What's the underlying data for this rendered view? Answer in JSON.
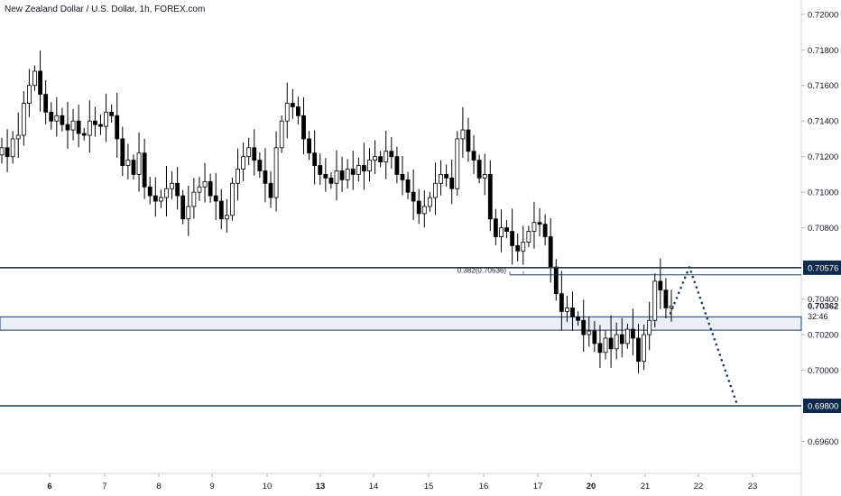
{
  "title": "New Zealand Dollar / U.S. Dollar, 1h, FOREX.com",
  "chart_data": {
    "type": "candlestick",
    "symbol": "NZDUSD",
    "timeframe": "1h",
    "source": "FOREX.com",
    "ylim": [
      0.6942,
      0.7208
    ],
    "y_ticks": [
      "0.72000",
      "0.71800",
      "0.71600",
      "0.71400",
      "0.71200",
      "0.71000",
      "0.70800",
      "0.70400",
      "0.70200",
      "0.70000",
      "0.69600"
    ],
    "y_tick_values": [
      0.72,
      0.718,
      0.716,
      0.714,
      0.712,
      0.71,
      0.708,
      0.704,
      0.702,
      0.7,
      0.696
    ],
    "x_ticks": [
      "6",
      "7",
      "8",
      "9",
      "10",
      "13",
      "14",
      "15",
      "16",
      "17",
      "20",
      "21",
      "22",
      "23"
    ],
    "x_tick_bold": [
      "6",
      "13",
      "20"
    ],
    "price_series": [
      0.7125,
      0.712,
      0.713,
      0.7132,
      0.715,
      0.716,
      0.7168,
      0.7155,
      0.7145,
      0.714,
      0.7143,
      0.7138,
      0.7135,
      0.714,
      0.7133,
      0.7132,
      0.714,
      0.7138,
      0.7137,
      0.7145,
      0.7143,
      0.713,
      0.7115,
      0.7118,
      0.711,
      0.7122,
      0.7103,
      0.7098,
      0.7095,
      0.7097,
      0.7102,
      0.7105,
      0.7098,
      0.7085,
      0.7092,
      0.71,
      0.7103,
      0.7106,
      0.7098,
      0.7095,
      0.7085,
      0.7087,
      0.7105,
      0.7113,
      0.712,
      0.7125,
      0.7118,
      0.7112,
      0.7105,
      0.7097,
      0.7125,
      0.714,
      0.715,
      0.7148,
      0.7143,
      0.713,
      0.7122,
      0.7115,
      0.711,
      0.7108,
      0.7105,
      0.7112,
      0.7107,
      0.7113,
      0.711,
      0.7115,
      0.7112,
      0.7118,
      0.712,
      0.7117,
      0.7123,
      0.712,
      0.711,
      0.7107,
      0.71,
      0.7095,
      0.7088,
      0.7092,
      0.7097,
      0.7105,
      0.711,
      0.7108,
      0.7102,
      0.713,
      0.7135,
      0.7123,
      0.7118,
      0.7108,
      0.711,
      0.7085,
      0.7075,
      0.708,
      0.7078,
      0.707,
      0.7067,
      0.7072,
      0.7078,
      0.7083,
      0.7082,
      0.7075,
      0.7058,
      0.7043,
      0.7033,
      0.7035,
      0.703,
      0.7028,
      0.702,
      0.7022,
      0.7015,
      0.701,
      0.7018,
      0.7012,
      0.702,
      0.7015,
      0.7023,
      0.7018,
      0.7005,
      0.702,
      0.7028,
      0.705,
      0.7045,
      0.7035,
      0.7036
    ],
    "levels": [
      {
        "price": 0.70576,
        "label": "0.70576",
        "style": "line-with-tag"
      },
      {
        "price": 0.698,
        "label": "0.69800",
        "style": "line-with-tag"
      }
    ],
    "zones": [
      {
        "top": 0.703,
        "bottom": 0.70225
      }
    ],
    "fib_level": {
      "label": "0.382(0.70536)",
      "price": 0.70536
    },
    "current_price": {
      "label": "0.70362",
      "countdown": "32:46"
    },
    "projection": [
      {
        "x_day": "21",
        "price": 0.7032
      },
      {
        "x_day": "22",
        "price": 0.7058
      },
      {
        "x_day": "23",
        "price": 0.6982
      }
    ]
  },
  "colors": {
    "candle": "#000000",
    "level": "#1e3a5f",
    "zone_fill": "#eaeef5",
    "zone_border": "#1e3a5f",
    "tag_bg": "#0f2a4a",
    "tag_text": "#ffffff",
    "projection": "#1e3a5f",
    "grid": "#e0e3eb"
  }
}
